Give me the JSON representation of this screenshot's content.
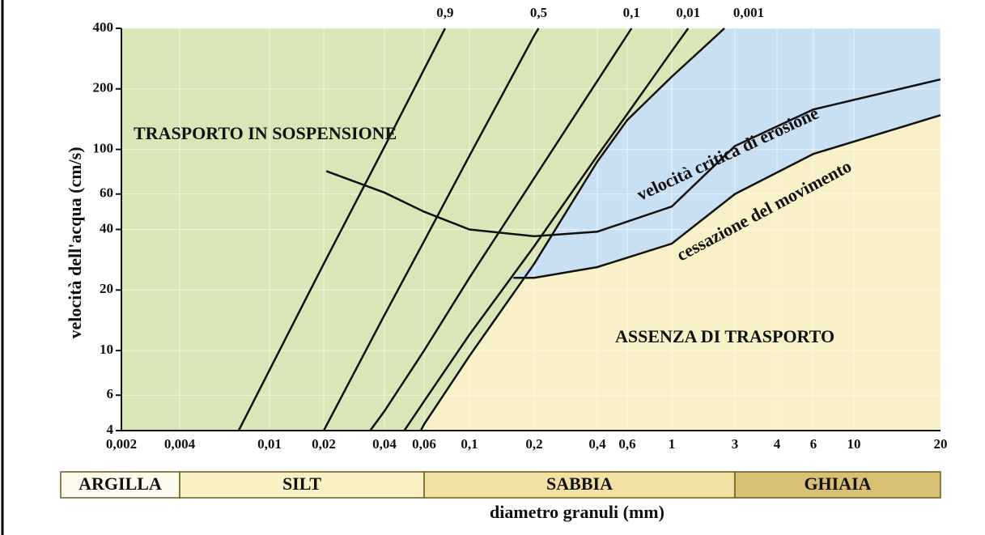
{
  "chart_data": {
    "type": "line",
    "y_label": "velocità dell'acqua (cm/s)",
    "x_label": "diametro granuli (mm)",
    "log_x": true,
    "log_y": true,
    "xlim": [
      0.002,
      20
    ],
    "ylim": [
      4,
      400
    ],
    "xticks": [
      {
        "value": 0.002,
        "label": "0,002"
      },
      {
        "value": 0.004,
        "label": "0,004"
      },
      {
        "value": 0.01,
        "label": "0,01"
      },
      {
        "value": 0.02,
        "label": "0,02"
      },
      {
        "value": 0.04,
        "label": "0,04"
      },
      {
        "value": 0.06,
        "label": "0,06"
      },
      {
        "value": 0.1,
        "label": "0,1"
      },
      {
        "value": 0.2,
        "label": "0,2"
      },
      {
        "value": 0.4,
        "label": "0,4"
      },
      {
        "value": 0.6,
        "label": "0,6"
      },
      1,
      3,
      4,
      6,
      10,
      20
    ],
    "yticks": [
      4,
      6,
      10,
      20,
      40,
      60,
      100,
      200,
      400
    ],
    "grid": true,
    "line_color": "#111111",
    "region_colors": [
      "#d9e6b6",
      "#c9e0f2",
      "#f8f0c6"
    ],
    "annotations": [
      "TRASPORTO IN SOSPENSIONE",
      "ASSENZA DI TRASPORTO"
    ],
    "series": [
      {
        "name": "0,9",
        "x": [
          0.0073,
          0.01,
          0.02,
          0.04,
          0.06,
          0.076
        ],
        "values": [
          4,
          8,
          27,
          103,
          250,
          400
        ]
      },
      {
        "name": "0,5",
        "x": [
          0.02,
          0.04,
          0.06,
          0.1,
          0.2,
          0.21
        ],
        "values": [
          4,
          15,
          35,
          93,
          368,
          400
        ]
      },
      {
        "name": "0,1",
        "x": [
          0.034,
          0.04,
          0.06,
          0.1,
          0.2,
          0.4,
          0.6,
          0.63
        ],
        "values": [
          4,
          5,
          10,
          23,
          72,
          219,
          371,
          400
        ]
      },
      {
        "name": "0,01",
        "x": [
          0.049,
          0.06,
          0.1,
          0.2,
          0.4,
          0.6,
          1,
          1.33
        ],
        "values": [
          4,
          5.6,
          12,
          33,
          93,
          150,
          308,
          400
        ]
      },
      {
        "name": "0,001",
        "x": [
          0.058,
          0.06,
          0.1,
          0.2,
          0.4,
          0.6,
          1,
          2.5
        ],
        "values": [
          4,
          4.3,
          9.4,
          27,
          87,
          140,
          230,
          400
        ]
      },
      {
        "name": "velocità critica di erosione",
        "x": [
          0.0206,
          0.04,
          0.06,
          0.1,
          0.2,
          0.4,
          1,
          3,
          6,
          20
        ],
        "values": [
          78,
          61,
          49,
          40,
          37,
          39,
          52,
          104,
          158,
          223
        ]
      },
      {
        "name": "cessazione del movimento",
        "x": [
          0.16,
          0.2,
          0.4,
          1,
          3,
          6,
          20
        ],
        "values": [
          23,
          23,
          26,
          34,
          60,
          95,
          148
        ]
      }
    ],
    "size_classes": [
      {
        "name": "ARGILLA",
        "range": [
          0.002,
          0.004
        ],
        "color": "#fdfbee"
      },
      {
        "name": "SILT",
        "range": [
          0.004,
          0.06
        ],
        "color": "#f9f1c4"
      },
      {
        "name": "SABBIA",
        "range": [
          0.06,
          3
        ],
        "color": "#f1e2a4"
      },
      {
        "name": "GHIAIA",
        "range": [
          3,
          20
        ],
        "color": "#d9c174"
      }
    ]
  }
}
